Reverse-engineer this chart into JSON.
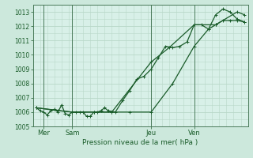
{
  "title": "Pression niveau de la mer( hPa )",
  "bg_color": "#cce8dc",
  "plot_bg": "#d8f0e8",
  "grid_color": "#b8d8c8",
  "line_color": "#1a5c2a",
  "spine_color": "#4a7a5a",
  "ylim": [
    1005,
    1013.5
  ],
  "yticks": [
    1005,
    1006,
    1007,
    1008,
    1009,
    1010,
    1011,
    1012,
    1013
  ],
  "xlim": [
    0,
    30
  ],
  "day_labels": [
    "Mer",
    "Sam",
    "Jeu",
    "Ven"
  ],
  "day_positions": [
    1.5,
    5.5,
    16.5,
    22.5
  ],
  "vline_positions": [
    1.5,
    5.5,
    16.5,
    22.5
  ],
  "series1_x": [
    0.5,
    1.0,
    1.5,
    2.0,
    2.5,
    3.0,
    3.5,
    4.0,
    4.5,
    5.0,
    5.5,
    6.0,
    6.5,
    7.0,
    7.5,
    8.0,
    8.5,
    9.0,
    9.5,
    10.0,
    10.5,
    11.5,
    12.5,
    13.5,
    14.5,
    15.5,
    16.5,
    17.5,
    18.5,
    19.5,
    20.5,
    21.5,
    22.5,
    23.5,
    24.5,
    25.5,
    26.5,
    27.5,
    28.5,
    29.5
  ],
  "series1_y": [
    1006.3,
    1006.1,
    1006.0,
    1005.8,
    1006.1,
    1006.2,
    1006.0,
    1006.5,
    1005.9,
    1005.8,
    1006.0,
    1006.0,
    1006.0,
    1006.0,
    1005.7,
    1005.7,
    1006.0,
    1006.0,
    1006.1,
    1006.3,
    1006.1,
    1006.0,
    1006.8,
    1007.5,
    1008.3,
    1008.5,
    1009.0,
    1009.8,
    1010.6,
    1010.5,
    1010.6,
    1010.9,
    1012.1,
    1012.1,
    1011.8,
    1012.1,
    1012.4,
    1012.4,
    1012.4,
    1012.3
  ],
  "series2_x": [
    0.5,
    5.5,
    11.0,
    16.5,
    19.0,
    22.5,
    25.5,
    28.5,
    29.5
  ],
  "series2_y": [
    1006.3,
    1006.0,
    1006.0,
    1009.5,
    1010.5,
    1012.1,
    1012.1,
    1013.0,
    1012.8
  ],
  "series3_x": [
    0.5,
    3.5,
    5.5,
    8.5,
    11.0,
    13.5,
    16.5,
    19.5,
    22.5,
    24.5,
    25.5,
    26.5,
    27.5,
    28.5,
    29.5
  ],
  "series3_y": [
    1006.3,
    1006.1,
    1006.0,
    1006.0,
    1006.0,
    1006.0,
    1006.0,
    1008.0,
    1010.6,
    1011.8,
    1012.8,
    1013.2,
    1013.0,
    1012.5,
    1012.3
  ]
}
